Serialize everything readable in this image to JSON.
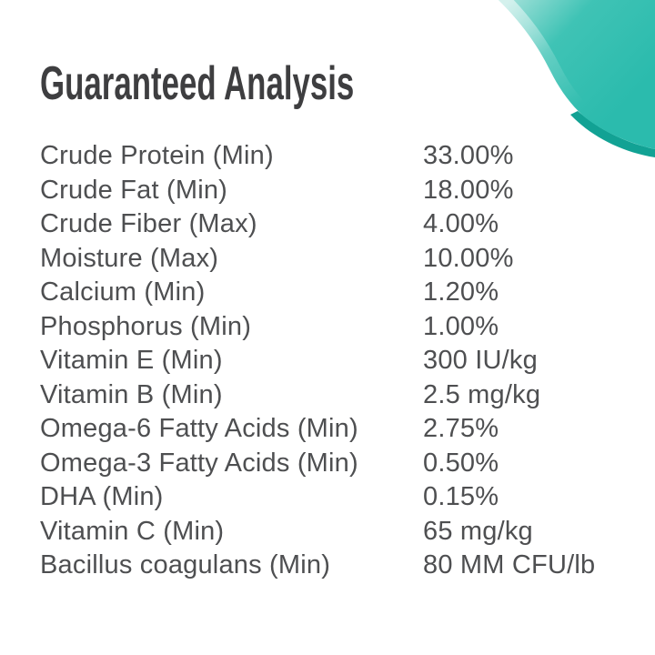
{
  "title": "Guaranteed Analysis",
  "colors": {
    "background": "#ffffff",
    "title_text": "#3e3e40",
    "body_text": "#4e4f51",
    "teal_light": "#9fe0d8",
    "teal_mid": "#3fc3b5",
    "teal_main": "#2bbbad",
    "teal_dark": "#12a294"
  },
  "analysis": {
    "rows": [
      {
        "label": "Crude Protein (Min)",
        "value": "33.00%"
      },
      {
        "label": "Crude Fat (Min)",
        "value": "18.00%"
      },
      {
        "label": "Crude Fiber (Max)",
        "value": "4.00%"
      },
      {
        "label": "Moisture (Max)",
        "value": "10.00%"
      },
      {
        "label": "Calcium (Min)",
        "value": "1.20%"
      },
      {
        "label": "Phosphorus (Min)",
        "value": "1.00%"
      },
      {
        "label": "Vitamin E (Min)",
        "value": "300 IU/kg"
      },
      {
        "label": "Vitamin B (Min)",
        "value": "2.5 mg/kg"
      },
      {
        "label": "Omega-6 Fatty Acids (Min)",
        "value": "2.75%"
      },
      {
        "label": "Omega-3 Fatty Acids (Min)",
        "value": "0.50%"
      },
      {
        "label": "DHA (Min)",
        "value": "0.15%"
      },
      {
        "label": "Vitamin C (Min)",
        "value": "65 mg/kg"
      },
      {
        "label": "Bacillus coagulans (Min)",
        "value": "80 MM CFU/lb"
      }
    ]
  }
}
